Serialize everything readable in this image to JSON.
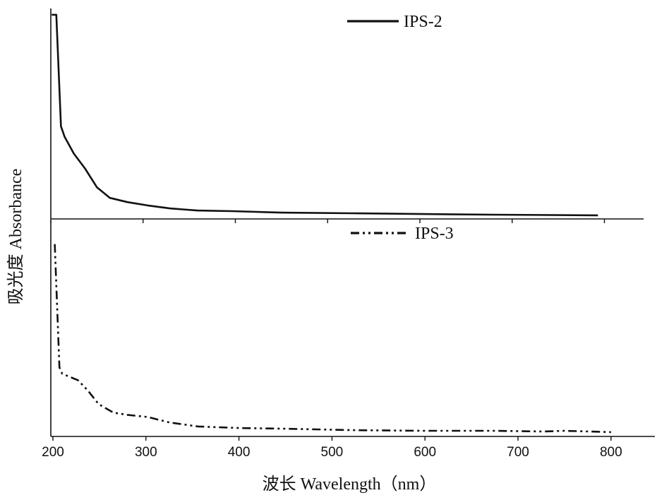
{
  "chart_data": {
    "type": "line",
    "xlabel": "波长 Wavelength（nm）",
    "ylabel": "吸光度 Absorbance",
    "xticks": [
      200,
      300,
      400,
      500,
      600,
      700,
      800
    ],
    "grid": false,
    "legend": "top-center",
    "panels": [
      {
        "name": "IPS-2",
        "line_style": "solid",
        "color": "#111111",
        "xlim": [
          198,
          842
        ],
        "ylim": [
          0,
          1
        ],
        "x": [
          201,
          206,
          211,
          215,
          225,
          237,
          250,
          264,
          283,
          305,
          329,
          359,
          397,
          451,
          527,
          604,
          680,
          793
        ],
        "y": [
          0.97,
          0.97,
          0.44,
          0.39,
          0.31,
          0.24,
          0.15,
          0.1,
          0.08,
          0.064,
          0.05,
          0.04,
          0.037,
          0.03,
          0.027,
          0.023,
          0.02,
          0.017
        ]
      },
      {
        "name": "IPS-3",
        "line_style": "dash-dot-dot",
        "color": "#111111",
        "xlim": [
          198,
          847
        ],
        "ylim": [
          0,
          1
        ],
        "x": [
          202,
          207,
          210,
          227,
          238,
          249,
          265,
          280,
          302,
          325,
          356,
          401,
          447,
          523,
          598,
          674,
          727,
          750,
          800
        ],
        "y": [
          0.89,
          0.32,
          0.29,
          0.26,
          0.21,
          0.15,
          0.11,
          0.1,
          0.09,
          0.065,
          0.046,
          0.039,
          0.036,
          0.029,
          0.026,
          0.026,
          0.023,
          0.026,
          0.02
        ]
      }
    ]
  }
}
